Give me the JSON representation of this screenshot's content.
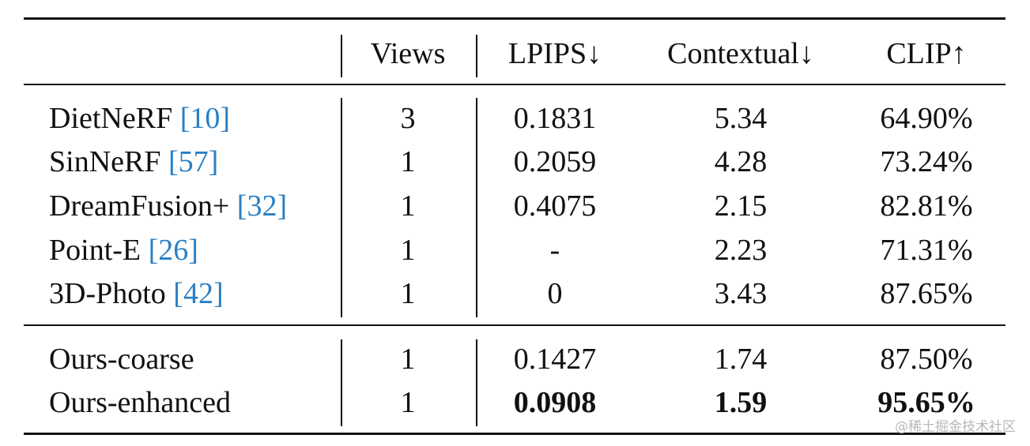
{
  "table": {
    "header": [
      "Views",
      "LPIPS↓",
      "Contextual↓",
      "CLIP↑"
    ],
    "groups": [
      [
        {
          "method": "DietNeRF",
          "ref": "[10]",
          "cells": [
            "3",
            "0.1831",
            "5.34",
            "64.90%"
          ]
        },
        {
          "method": "SinNeRF",
          "ref": "[57]",
          "cells": [
            "1",
            "0.2059",
            "4.28",
            "73.24%"
          ]
        },
        {
          "method": "DreamFusion+",
          "ref": "[32]",
          "cells": [
            "1",
            "0.4075",
            "2.15",
            "82.81%"
          ]
        },
        {
          "method": "Point-E",
          "ref": "[26]",
          "cells": [
            "1",
            "-",
            "2.23",
            "71.31%"
          ]
        },
        {
          "method": "3D-Photo",
          "ref": "[42]",
          "cells": [
            "1",
            "0",
            "3.43",
            "87.65%"
          ]
        }
      ],
      [
        {
          "method": "Ours-coarse",
          "cells": [
            "1",
            "0.1427",
            "1.74",
            "87.50%"
          ]
        },
        {
          "method": "Ours-enhanced",
          "cells": [
            "1",
            "0.0908",
            "1.59",
            "95.65%"
          ],
          "bold": [
            false,
            true,
            true,
            true
          ]
        }
      ]
    ]
  },
  "watermark": "@稀土掘金技术社区"
}
